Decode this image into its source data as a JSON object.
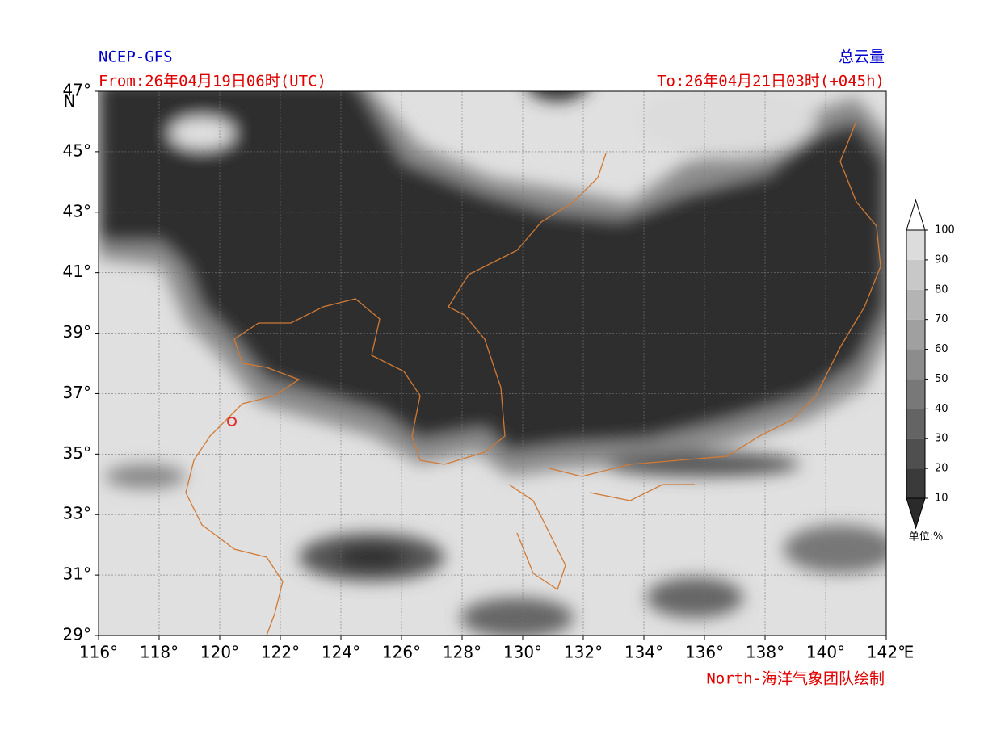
{
  "map": {
    "source": "NCEP-GFS",
    "variable": "总云量",
    "from": "From:26年04月19日06时(UTC)",
    "to": "To:26年04月21日03时(+045h)",
    "credit": "North-海洋气象团队绘制",
    "lon_range": [
      116,
      142
    ],
    "lat_range": [
      29,
      47
    ],
    "lon_ticks": [
      {
        "value": 116,
        "label": "116°"
      },
      {
        "value": 118,
        "label": "118°"
      },
      {
        "value": 120,
        "label": "120°"
      },
      {
        "value": 122,
        "label": "122°"
      },
      {
        "value": 124,
        "label": "124°"
      },
      {
        "value": 126,
        "label": "126°"
      },
      {
        "value": 128,
        "label": "128°"
      },
      {
        "value": 130,
        "label": "130°"
      },
      {
        "value": 132,
        "label": "132°"
      },
      {
        "value": 134,
        "label": "134°"
      },
      {
        "value": 136,
        "label": "136°"
      },
      {
        "value": 138,
        "label": "138°"
      },
      {
        "value": 140,
        "label": "140°"
      },
      {
        "value": 142,
        "label": "142°"
      }
    ],
    "lat_ticks": [
      {
        "value": 29,
        "label": "29°"
      },
      {
        "value": 31,
        "label": "31°"
      },
      {
        "value": 33,
        "label": "33°"
      },
      {
        "value": 35,
        "label": "35°"
      },
      {
        "value": 37,
        "label": "37°"
      },
      {
        "value": 39,
        "label": "39°"
      },
      {
        "value": 41,
        "label": "41°"
      },
      {
        "value": 43,
        "label": "43°"
      },
      {
        "value": 45,
        "label": "45°"
      },
      {
        "value": 47,
        "label": "47°"
      }
    ],
    "lon_unit": "E",
    "lat_unit": "N",
    "colorbar": {
      "ticks": [
        10,
        20,
        30,
        40,
        50,
        60,
        70,
        80,
        90,
        100
      ],
      "colors": [
        "#3a3a3a",
        "#4f4f4f",
        "#646464",
        "#787878",
        "#8c8c8c",
        "#a0a0a0",
        "#b4b4b4",
        "#c8c8c8",
        "#dcdcdc"
      ],
      "unit": "单位:%"
    }
  }
}
